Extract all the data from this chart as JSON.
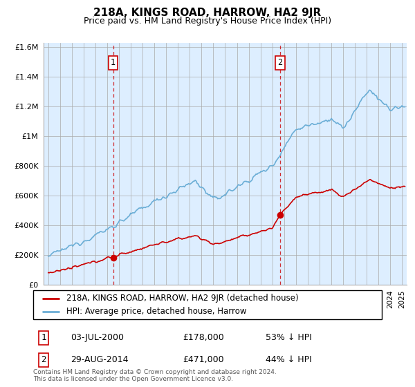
{
  "title": "218A, KINGS ROAD, HARROW, HA2 9JR",
  "subtitle": "Price paid vs. HM Land Registry's House Price Index (HPI)",
  "footer": "Contains HM Land Registry data © Crown copyright and database right 2024.\nThis data is licensed under the Open Government Licence v3.0.",
  "legend_entry1": "218A, KINGS ROAD, HARROW, HA2 9JR (detached house)",
  "legend_entry2": "HPI: Average price, detached house, Harrow",
  "sale1_date": "03-JUL-2000",
  "sale1_price": 178000,
  "sale1_label": "53% ↓ HPI",
  "sale2_date": "29-AUG-2014",
  "sale2_price": 471000,
  "sale2_label": "44% ↓ HPI",
  "sale1_x": 2000.5,
  "sale2_x": 2014.67,
  "hpi_color": "#6baed6",
  "sale_color": "#cc0000",
  "vline_color": "#cc0000",
  "plot_bg_color": "#ddeeff",
  "background_color": "#ffffff",
  "ylim_max": 1600000,
  "xlim_start": 1994.6,
  "xlim_end": 2025.4
}
